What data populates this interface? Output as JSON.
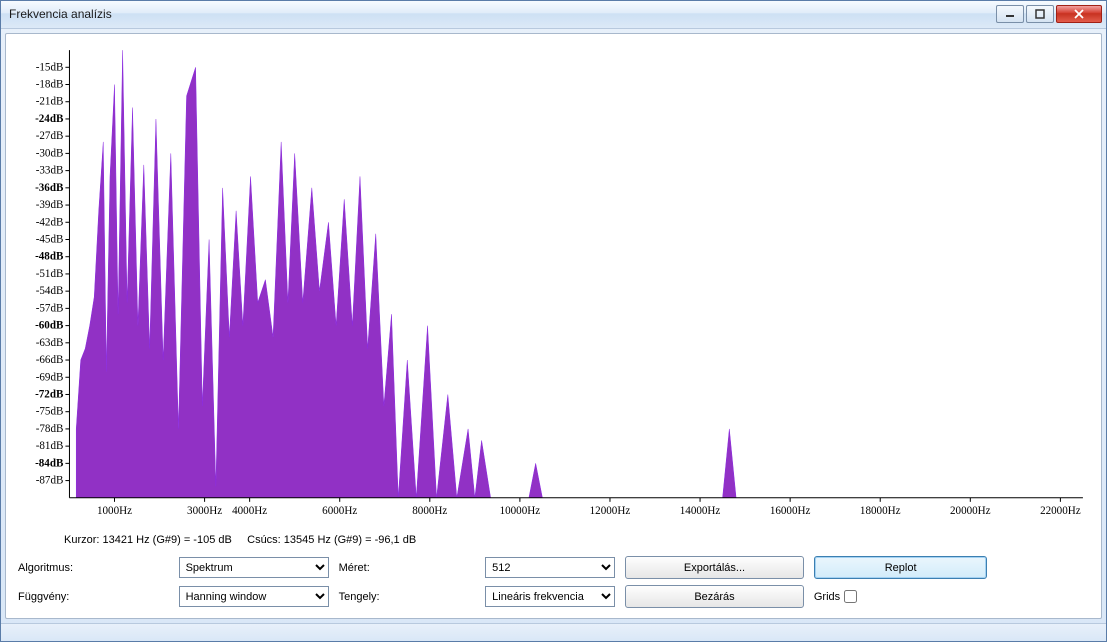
{
  "window": {
    "title": "Frekvencia analízis"
  },
  "chart": {
    "type": "area",
    "fill_color": "#9131c5",
    "stroke_color": "#8a2be2",
    "background_color": "#ffffff",
    "axis_color": "#000000",
    "tick_font_size": 11,
    "y_ticks": [
      "-15dB",
      "-18dB",
      "-21dB",
      "-24dB",
      "-27dB",
      "-30dB",
      "-33dB",
      "-36dB",
      "-39dB",
      "-42dB",
      "-45dB",
      "-48dB",
      "-51dB",
      "-54dB",
      "-57dB",
      "-60dB",
      "-63dB",
      "-66dB",
      "-69dB",
      "-72dB",
      "-75dB",
      "-78dB",
      "-81dB",
      "-84dB",
      "-87dB"
    ],
    "y_bold_ticks": [
      "-24dB",
      "-36dB",
      "-48dB",
      "-60dB",
      "-72dB",
      "-84dB"
    ],
    "y_min": -90,
    "y_max": -12,
    "x_ticks": [
      "1000Hz",
      "3000Hz",
      "4000Hz",
      "6000Hz",
      "8000Hz",
      "10000Hz",
      "12000Hz",
      "14000Hz",
      "16000Hz",
      "18000Hz",
      "20000Hz",
      "22000Hz"
    ],
    "x_tick_positions": [
      1000,
      3000,
      4000,
      6000,
      8000,
      10000,
      12000,
      14000,
      16000,
      18000,
      20000,
      22000
    ],
    "x_min": 0,
    "x_max": 22500,
    "data": [
      [
        150,
        -78
      ],
      [
        250,
        -66
      ],
      [
        350,
        -64
      ],
      [
        450,
        -60
      ],
      [
        550,
        -55
      ],
      [
        650,
        -40
      ],
      [
        750,
        -28
      ],
      [
        820,
        -68
      ],
      [
        900,
        -34
      ],
      [
        1000,
        -18
      ],
      [
        1080,
        -58
      ],
      [
        1180,
        -12
      ],
      [
        1280,
        -56
      ],
      [
        1400,
        -22
      ],
      [
        1520,
        -60
      ],
      [
        1650,
        -32
      ],
      [
        1780,
        -64
      ],
      [
        1920,
        -24
      ],
      [
        2080,
        -66
      ],
      [
        2250,
        -30
      ],
      [
        2420,
        -78
      ],
      [
        2600,
        -20
      ],
      [
        2800,
        -15
      ],
      [
        2950,
        -74
      ],
      [
        3100,
        -45
      ],
      [
        3250,
        -88
      ],
      [
        3400,
        -36
      ],
      [
        3550,
        -62
      ],
      [
        3700,
        -40
      ],
      [
        3850,
        -60
      ],
      [
        4020,
        -34
      ],
      [
        4180,
        -56
      ],
      [
        4350,
        -52
      ],
      [
        4520,
        -62
      ],
      [
        4700,
        -28
      ],
      [
        4850,
        -56
      ],
      [
        5000,
        -30
      ],
      [
        5180,
        -56
      ],
      [
        5380,
        -36
      ],
      [
        5550,
        -54
      ],
      [
        5750,
        -42
      ],
      [
        5920,
        -60
      ],
      [
        6100,
        -38
      ],
      [
        6280,
        -60
      ],
      [
        6450,
        -34
      ],
      [
        6620,
        -64
      ],
      [
        6800,
        -44
      ],
      [
        6980,
        -74
      ],
      [
        7150,
        -58
      ],
      [
        7300,
        -90
      ],
      [
        7500,
        -66
      ],
      [
        7700,
        -90
      ],
      [
        7950,
        -60
      ],
      [
        8150,
        -90
      ],
      [
        8400,
        -72
      ],
      [
        8600,
        -90
      ],
      [
        8850,
        -78
      ],
      [
        9000,
        -90
      ],
      [
        9150,
        -80
      ],
      [
        9350,
        -90
      ],
      [
        10200,
        -90
      ],
      [
        10350,
        -84
      ],
      [
        10500,
        -90
      ],
      [
        14500,
        -90
      ],
      [
        14650,
        -78
      ],
      [
        14800,
        -90
      ]
    ]
  },
  "status": {
    "cursor_label": "Kurzor: 13421 Hz (G#9) = -105 dB",
    "peak_label": "Csúcs: 13545 Hz (G#9) = -96,1 dB"
  },
  "controls": {
    "algorithm_label": "Algoritmus:",
    "algorithm_value": "Spektrum",
    "size_label": "Méret:",
    "size_value": "512",
    "function_label": "Függvény:",
    "function_value": "Hanning window",
    "axis_label": "Tengely:",
    "axis_value": "Lineáris frekvencia",
    "export_label": "Exportálás...",
    "close_label": "Bezárás",
    "replot_label": "Replot",
    "grids_label": "Grids",
    "grids_checked": false
  }
}
